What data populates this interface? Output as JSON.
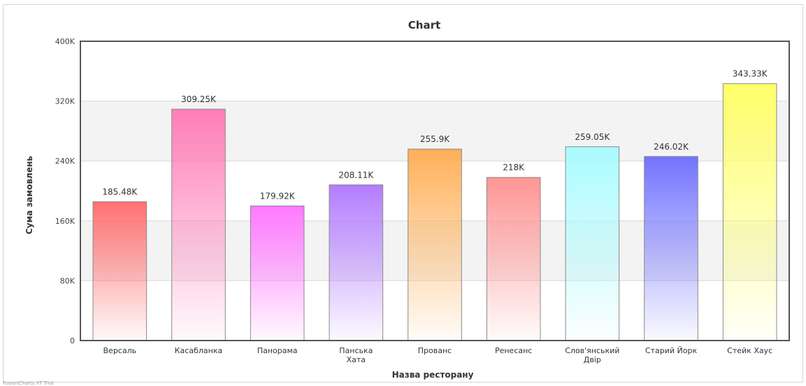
{
  "chart_data": {
    "type": "bar",
    "title": "Chart",
    "xlabel": "Назва ресторану",
    "ylabel": "Сума замовлень",
    "ylim": [
      0,
      400000
    ],
    "yticks": [
      0,
      80000,
      160000,
      240000,
      320000,
      400000
    ],
    "ytick_labels": [
      "0",
      "80K",
      "160K",
      "240K",
      "320K",
      "400K"
    ],
    "grid": true,
    "categories": [
      [
        "Версаль"
      ],
      [
        "Касабланка"
      ],
      [
        "Панорама"
      ],
      [
        "Панська",
        "Хата"
      ],
      [
        "Прованс"
      ],
      [
        "Ренесанс"
      ],
      [
        "Слов'янський",
        "Двір"
      ],
      [
        "Старий Йорк"
      ],
      [
        "Стейк Хаус"
      ]
    ],
    "values": [
      185480,
      309250,
      179920,
      208110,
      255900,
      218000,
      259050,
      246020,
      343330
    ],
    "value_labels": [
      "185.48K",
      "309.25K",
      "179.92K",
      "208.11K",
      "255.9K",
      "218K",
      "259.05K",
      "246.02K",
      "343.33K"
    ],
    "colors": [
      "#ff7070",
      "#ff7eb8",
      "#ff78ff",
      "#b27cff",
      "#ffb05a",
      "#ff9494",
      "#a9fbff",
      "#7373ff",
      "#ffff6a"
    ]
  },
  "footer": "FusionCharts XT Trial"
}
